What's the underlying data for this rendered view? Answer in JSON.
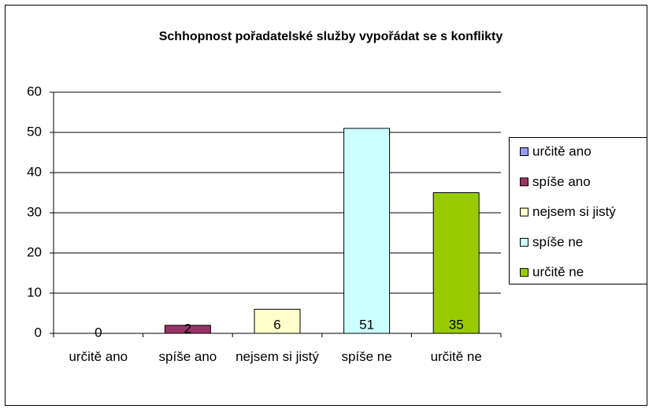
{
  "chart_data": {
    "type": "bar",
    "title": "Schhopnost pořadatelské služby vypořádat se s konflikty",
    "categories": [
      "určitě ano",
      "spíše ano",
      "nejsem si jistý",
      "spíše ne",
      "určitě ne"
    ],
    "values": [
      0,
      2,
      6,
      51,
      35
    ],
    "colors": [
      "#9999ff",
      "#993366",
      "#ffffcc",
      "#ccffff",
      "#99cc00"
    ],
    "ylim": [
      0,
      60
    ],
    "yticks": [
      0,
      10,
      20,
      30,
      40,
      50,
      60
    ],
    "grid": true,
    "legend": "right"
  }
}
